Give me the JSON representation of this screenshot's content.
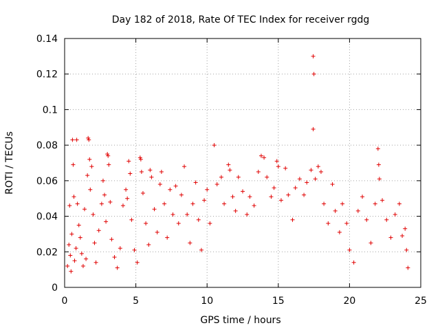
{
  "chart_data": {
    "type": "scatter",
    "title": "Day 182 of 2018, Rate Of TEC Index for receiver rgdg",
    "xlabel": "GPS time / hours",
    "ylabel": "ROTI / TECUs",
    "xlim": [
      0,
      25
    ],
    "ylim": [
      0,
      0.14
    ],
    "xticks": [
      0,
      5,
      10,
      15,
      20,
      25
    ],
    "xtick_labels": [
      "0",
      "5",
      "10",
      "15",
      "20",
      "25"
    ],
    "yticks": [
      0,
      0.02,
      0.04,
      0.06,
      0.08,
      0.1,
      0.12,
      0.14
    ],
    "ytick_labels": [
      "0",
      "0.02",
      "0.04",
      "0.06",
      "0.08",
      "0.1",
      "0.12",
      "0.14"
    ],
    "grid": true,
    "marker": "+",
    "marker_color": "#e00000",
    "series": [
      {
        "name": "ROTI",
        "points": [
          [
            0.2,
            0.012
          ],
          [
            0.3,
            0.024
          ],
          [
            0.35,
            0.046
          ],
          [
            0.4,
            0.018
          ],
          [
            0.45,
            0.009
          ],
          [
            0.5,
            0.03
          ],
          [
            0.55,
            0.083
          ],
          [
            0.6,
            0.069
          ],
          [
            0.65,
            0.051
          ],
          [
            0.7,
            0.015
          ],
          [
            0.8,
            0.022
          ],
          [
            0.85,
            0.083
          ],
          [
            0.9,
            0.047
          ],
          [
            1.0,
            0.035
          ],
          [
            1.1,
            0.028
          ],
          [
            1.2,
            0.019
          ],
          [
            1.3,
            0.012
          ],
          [
            1.4,
            0.044
          ],
          [
            1.5,
            0.016
          ],
          [
            1.6,
            0.063
          ],
          [
            1.65,
            0.084
          ],
          [
            1.7,
            0.083
          ],
          [
            1.75,
            0.072
          ],
          [
            1.8,
            0.055
          ],
          [
            1.9,
            0.068
          ],
          [
            2.0,
            0.041
          ],
          [
            2.1,
            0.025
          ],
          [
            2.2,
            0.014
          ],
          [
            2.4,
            0.032
          ],
          [
            2.6,
            0.047
          ],
          [
            2.7,
            0.06
          ],
          [
            2.8,
            0.052
          ],
          [
            2.9,
            0.037
          ],
          [
            3.0,
            0.075
          ],
          [
            3.05,
            0.074
          ],
          [
            3.1,
            0.069
          ],
          [
            3.2,
            0.048
          ],
          [
            3.3,
            0.027
          ],
          [
            3.5,
            0.017
          ],
          [
            3.7,
            0.011
          ],
          [
            3.9,
            0.022
          ],
          [
            4.1,
            0.046
          ],
          [
            4.3,
            0.055
          ],
          [
            4.4,
            0.05
          ],
          [
            4.5,
            0.071
          ],
          [
            4.6,
            0.064
          ],
          [
            4.7,
            0.038
          ],
          [
            4.9,
            0.021
          ],
          [
            5.1,
            0.014
          ],
          [
            5.3,
            0.073
          ],
          [
            5.35,
            0.072
          ],
          [
            5.4,
            0.065
          ],
          [
            5.5,
            0.053
          ],
          [
            5.7,
            0.036
          ],
          [
            5.9,
            0.024
          ],
          [
            6.0,
            0.066
          ],
          [
            6.1,
            0.062
          ],
          [
            6.3,
            0.044
          ],
          [
            6.5,
            0.031
          ],
          [
            6.7,
            0.058
          ],
          [
            6.8,
            0.065
          ],
          [
            7.0,
            0.047
          ],
          [
            7.2,
            0.028
          ],
          [
            7.4,
            0.055
          ],
          [
            7.6,
            0.041
          ],
          [
            7.8,
            0.057
          ],
          [
            8.0,
            0.036
          ],
          [
            8.2,
            0.052
          ],
          [
            8.4,
            0.068
          ],
          [
            8.6,
            0.041
          ],
          [
            8.8,
            0.025
          ],
          [
            9.0,
            0.047
          ],
          [
            9.2,
            0.059
          ],
          [
            9.4,
            0.038
          ],
          [
            9.6,
            0.021
          ],
          [
            9.8,
            0.049
          ],
          [
            10.0,
            0.055
          ],
          [
            10.2,
            0.036
          ],
          [
            10.5,
            0.08
          ],
          [
            10.7,
            0.058
          ],
          [
            11.0,
            0.062
          ],
          [
            11.2,
            0.047
          ],
          [
            11.5,
            0.069
          ],
          [
            11.6,
            0.066
          ],
          [
            11.8,
            0.051
          ],
          [
            12.0,
            0.043
          ],
          [
            12.2,
            0.062
          ],
          [
            12.5,
            0.054
          ],
          [
            12.8,
            0.041
          ],
          [
            13.0,
            0.051
          ],
          [
            13.3,
            0.046
          ],
          [
            13.6,
            0.065
          ],
          [
            13.8,
            0.074
          ],
          [
            14.0,
            0.073
          ],
          [
            14.2,
            0.062
          ],
          [
            14.5,
            0.051
          ],
          [
            14.7,
            0.056
          ],
          [
            14.9,
            0.071
          ],
          [
            15.0,
            0.068
          ],
          [
            15.2,
            0.049
          ],
          [
            15.5,
            0.067
          ],
          [
            15.7,
            0.052
          ],
          [
            16.0,
            0.038
          ],
          [
            16.2,
            0.056
          ],
          [
            16.5,
            0.061
          ],
          [
            16.8,
            0.052
          ],
          [
            17.0,
            0.059
          ],
          [
            17.3,
            0.066
          ],
          [
            17.45,
            0.13
          ],
          [
            17.5,
            0.12
          ],
          [
            17.45,
            0.089
          ],
          [
            17.6,
            0.061
          ],
          [
            17.8,
            0.068
          ],
          [
            18.0,
            0.065
          ],
          [
            18.2,
            0.047
          ],
          [
            18.5,
            0.036
          ],
          [
            18.8,
            0.058
          ],
          [
            19.0,
            0.043
          ],
          [
            19.3,
            0.031
          ],
          [
            19.5,
            0.047
          ],
          [
            19.8,
            0.036
          ],
          [
            20.0,
            0.021
          ],
          [
            20.3,
            0.014
          ],
          [
            20.6,
            0.043
          ],
          [
            20.9,
            0.051
          ],
          [
            21.2,
            0.038
          ],
          [
            21.5,
            0.025
          ],
          [
            21.8,
            0.047
          ],
          [
            22.0,
            0.078
          ],
          [
            22.05,
            0.069
          ],
          [
            22.1,
            0.061
          ],
          [
            22.3,
            0.049
          ],
          [
            22.6,
            0.038
          ],
          [
            22.9,
            0.028
          ],
          [
            23.2,
            0.041
          ],
          [
            23.5,
            0.047
          ],
          [
            23.7,
            0.029
          ],
          [
            23.9,
            0.033
          ],
          [
            24.0,
            0.021
          ],
          [
            24.1,
            0.011
          ]
        ]
      }
    ]
  }
}
